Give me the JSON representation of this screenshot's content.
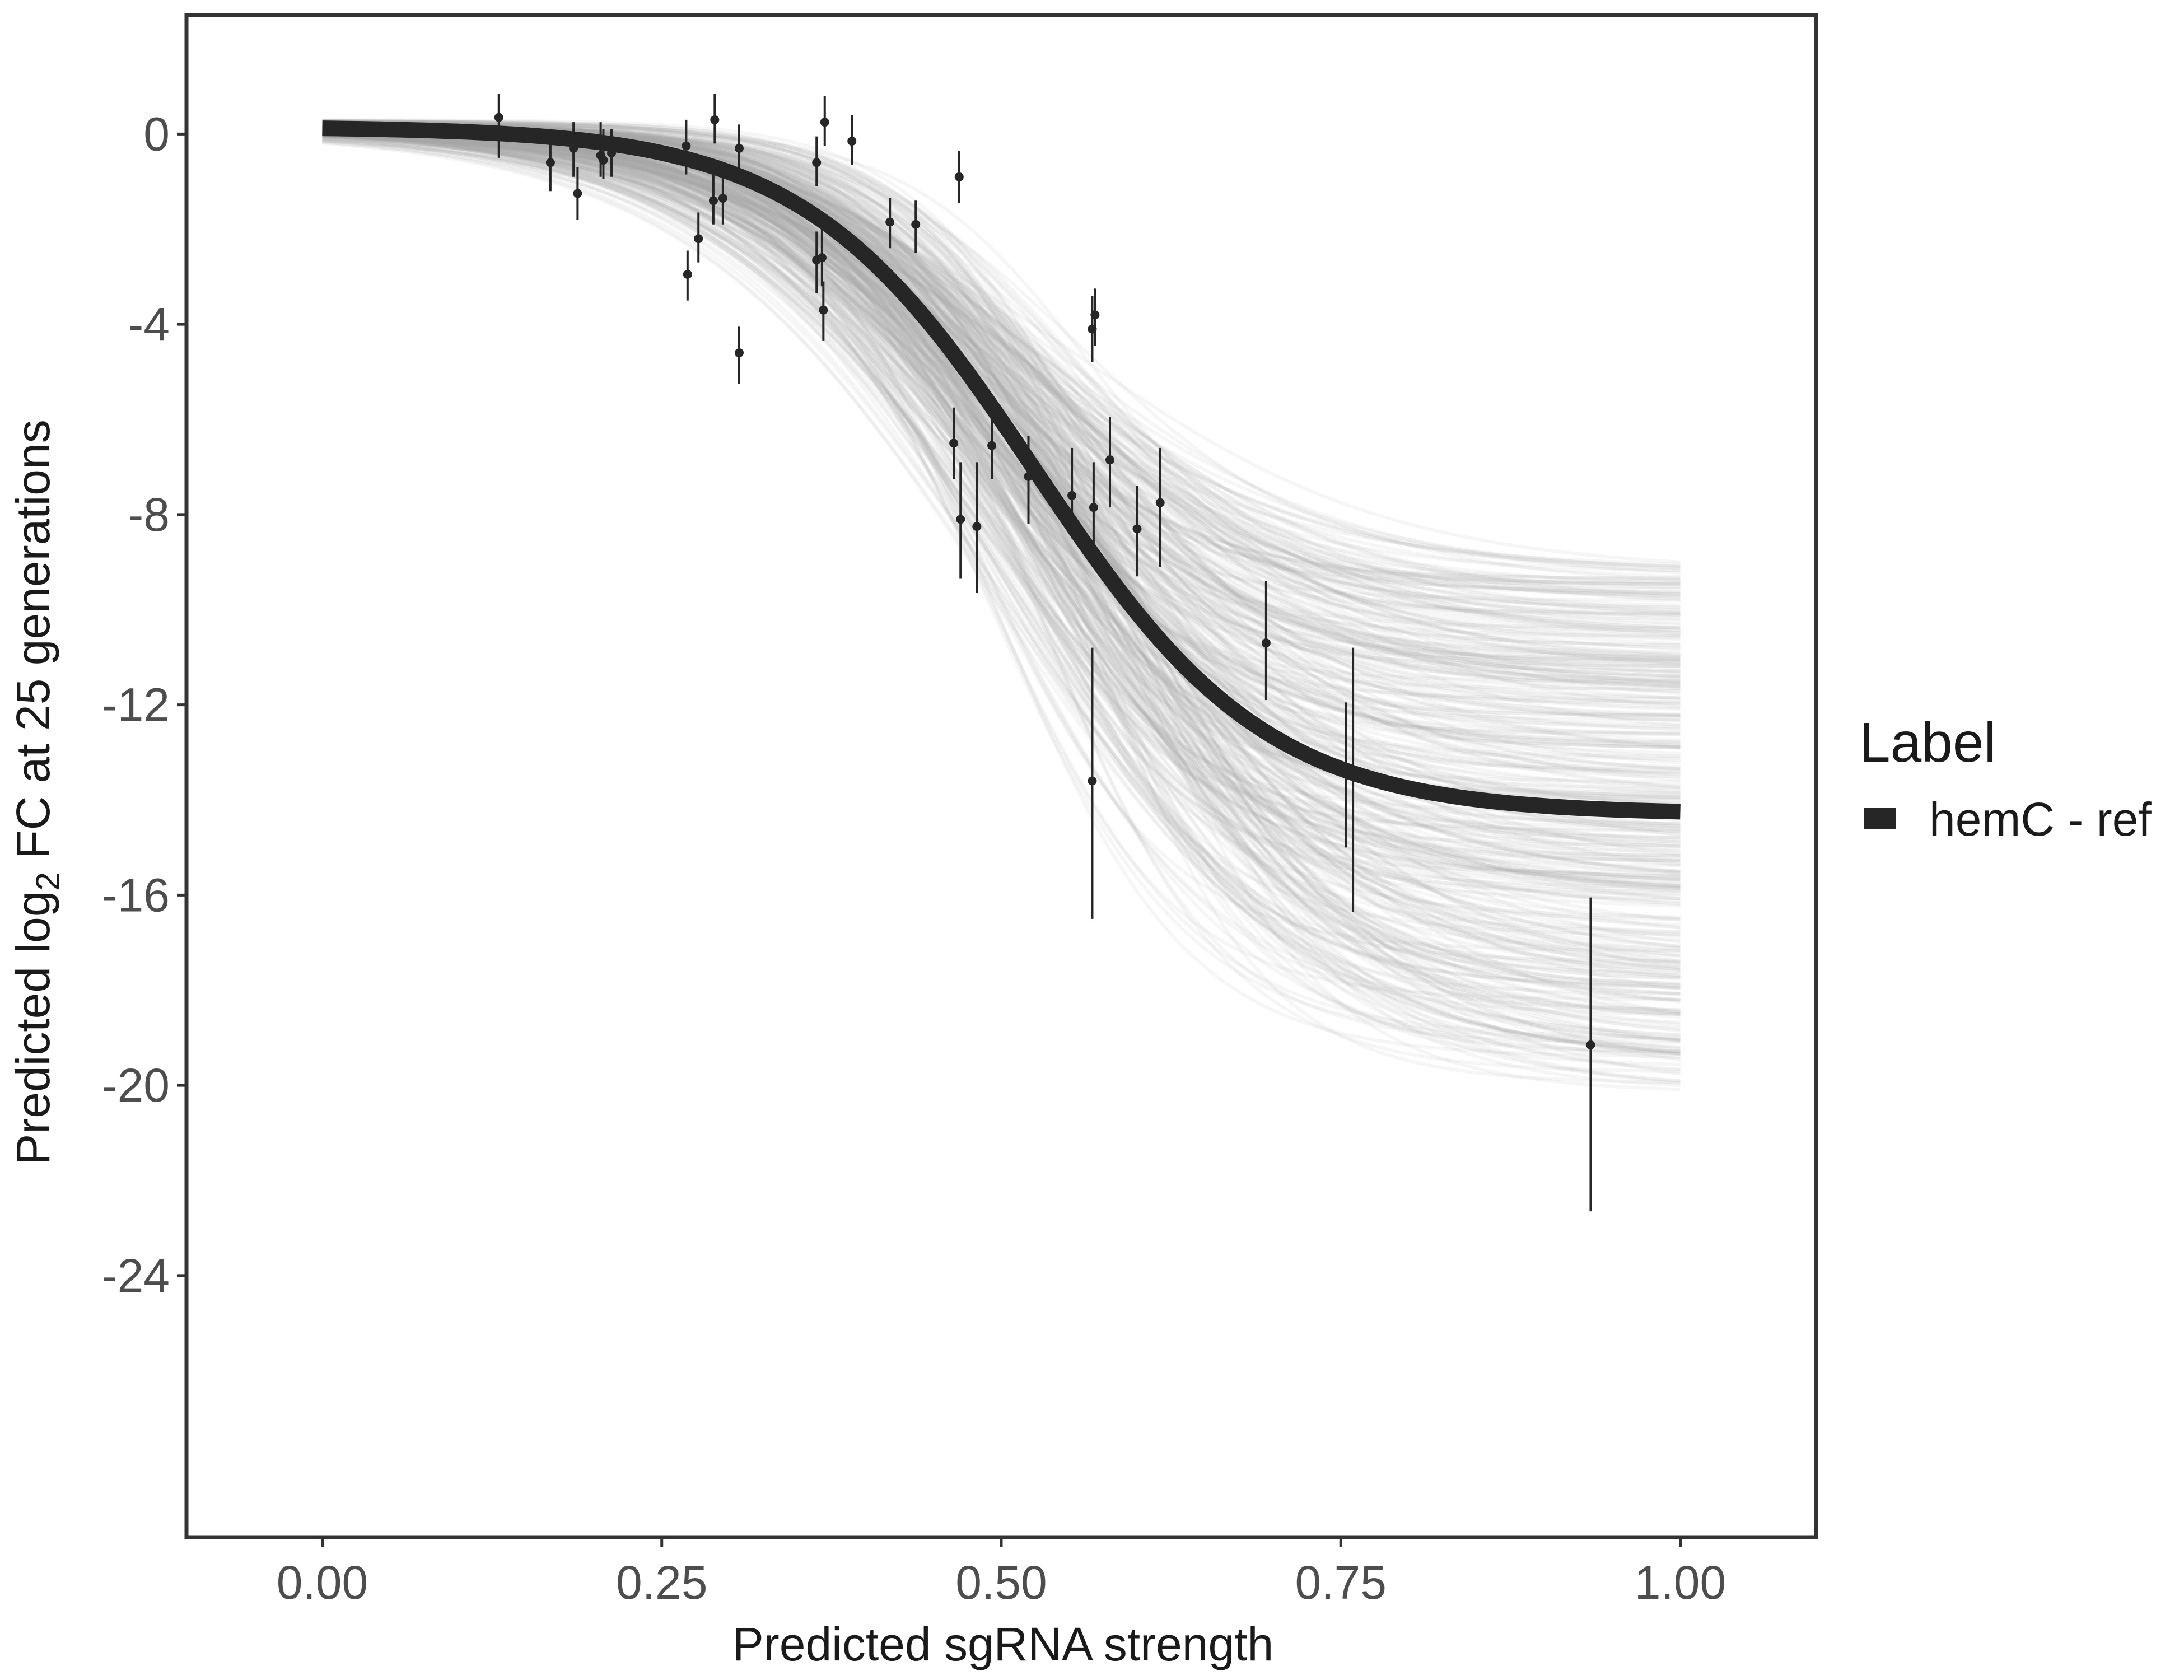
{
  "chart_data": {
    "type": "line",
    "title": "",
    "xlabel": "Predicted sgRNA strength",
    "ylabel_parts": [
      "Predicted  log",
      "2",
      " FC at 25 generations"
    ],
    "xlim": [
      -0.1,
      1.1
    ],
    "ylim": [
      -29.5,
      2.5
    ],
    "x_ticks": [
      0,
      0.25,
      0.5,
      0.75,
      1
    ],
    "x_tick_labels": [
      "0.00",
      "0.25",
      "0.50",
      "0.75",
      "1.00"
    ],
    "y_ticks": [
      0,
      -4,
      -8,
      -12,
      -16,
      -20,
      -24
    ],
    "y_tick_labels": [
      "0",
      "-4",
      "-8",
      "-12",
      "-16",
      "-20",
      "-24"
    ],
    "grid": false,
    "legend": {
      "title": "Label",
      "placement": "right",
      "entries": [
        {
          "label": "hemC - ref",
          "color": "#262626"
        }
      ]
    },
    "fit": {
      "name": "hemC - ref",
      "color": "#262626",
      "model": "logistic",
      "upper": 0.15,
      "lower": -14.3,
      "midpoint": 0.525,
      "scale": 0.085
    },
    "posterior_draws": {
      "color": "#a3a3a3",
      "count": 400,
      "lower_range": [
        -20.2,
        -9.1
      ],
      "midpoint_range": [
        0.45,
        0.6
      ],
      "scale_range": [
        0.065,
        0.12
      ]
    },
    "points": [
      {
        "x": 0.13,
        "y": 0.35,
        "lo": -0.5,
        "hi": 0.85
      },
      {
        "x": 0.168,
        "y": -0.6,
        "lo": -1.2,
        "hi": -0.05
      },
      {
        "x": 0.185,
        "y": -0.3,
        "lo": -0.9,
        "hi": 0.25
      },
      {
        "x": 0.188,
        "y": -1.25,
        "lo": -1.8,
        "hi": -0.7
      },
      {
        "x": 0.205,
        "y": -0.45,
        "lo": -0.9,
        "hi": 0.25
      },
      {
        "x": 0.207,
        "y": -0.55,
        "lo": -0.95,
        "hi": 0.1
      },
      {
        "x": 0.213,
        "y": -0.4,
        "lo": -0.9,
        "hi": 0.1
      },
      {
        "x": 0.268,
        "y": -0.25,
        "lo": -0.85,
        "hi": 0.3
      },
      {
        "x": 0.269,
        "y": -2.95,
        "lo": -3.5,
        "hi": -2.45
      },
      {
        "x": 0.277,
        "y": -2.2,
        "lo": -2.7,
        "hi": -1.65
      },
      {
        "x": 0.288,
        "y": -1.4,
        "lo": -1.9,
        "hi": -0.85
      },
      {
        "x": 0.289,
        "y": 0.3,
        "lo": -0.2,
        "hi": 0.85
      },
      {
        "x": 0.295,
        "y": -1.35,
        "lo": -1.9,
        "hi": -0.8
      },
      {
        "x": 0.307,
        "y": -0.3,
        "lo": -0.85,
        "hi": 0.2
      },
      {
        "x": 0.307,
        "y": -4.6,
        "lo": -5.25,
        "hi": -4.05
      },
      {
        "x": 0.364,
        "y": -0.6,
        "lo": -1.1,
        "hi": -0.05
      },
      {
        "x": 0.364,
        "y": -2.65,
        "lo": -3.35,
        "hi": -2.05
      },
      {
        "x": 0.368,
        "y": -2.6,
        "lo": -3.2,
        "hi": -2.0
      },
      {
        "x": 0.369,
        "y": -3.7,
        "lo": -4.35,
        "hi": -3.1
      },
      {
        "x": 0.37,
        "y": 0.25,
        "lo": -0.25,
        "hi": 0.8
      },
      {
        "x": 0.39,
        "y": -0.15,
        "lo": -0.65,
        "hi": 0.4
      },
      {
        "x": 0.418,
        "y": -1.85,
        "lo": -2.4,
        "hi": -1.35
      },
      {
        "x": 0.437,
        "y": -1.9,
        "lo": -2.5,
        "hi": -1.4
      },
      {
        "x": 0.465,
        "y": -6.5,
        "lo": -7.25,
        "hi": -5.75
      },
      {
        "x": 0.469,
        "y": -0.9,
        "lo": -1.45,
        "hi": -0.35
      },
      {
        "x": 0.47,
        "y": -8.1,
        "lo": -9.35,
        "hi": -6.9
      },
      {
        "x": 0.482,
        "y": -8.25,
        "lo": -9.65,
        "hi": -6.9
      },
      {
        "x": 0.493,
        "y": -6.55,
        "lo": -7.25,
        "hi": -5.9
      },
      {
        "x": 0.52,
        "y": -7.2,
        "lo": -8.2,
        "hi": -6.35
      },
      {
        "x": 0.552,
        "y": -7.6,
        "lo": -8.5,
        "hi": -6.6
      },
      {
        "x": 0.567,
        "y": -4.1,
        "lo": -4.8,
        "hi": -3.4
      },
      {
        "x": 0.567,
        "y": -13.6,
        "lo": -16.5,
        "hi": -10.8
      },
      {
        "x": 0.568,
        "y": -7.85,
        "lo": -8.85,
        "hi": -6.9
      },
      {
        "x": 0.569,
        "y": -3.8,
        "lo": -4.45,
        "hi": -3.25
      },
      {
        "x": 0.58,
        "y": -6.85,
        "lo": -7.85,
        "hi": -5.95
      },
      {
        "x": 0.6,
        "y": -8.3,
        "lo": -9.3,
        "hi": -7.4
      },
      {
        "x": 0.617,
        "y": -7.75,
        "lo": -9.1,
        "hi": -6.6
      },
      {
        "x": 0.695,
        "y": -10.7,
        "lo": -11.9,
        "hi": -9.4
      },
      {
        "x": 0.754,
        "y": -13.35,
        "lo": -15.0,
        "hi": -11.95
      },
      {
        "x": 0.759,
        "y": -13.5,
        "lo": -16.35,
        "hi": -10.8
      },
      {
        "x": 0.934,
        "y": -19.15,
        "lo": -22.65,
        "hi": -16.05
      }
    ]
  }
}
